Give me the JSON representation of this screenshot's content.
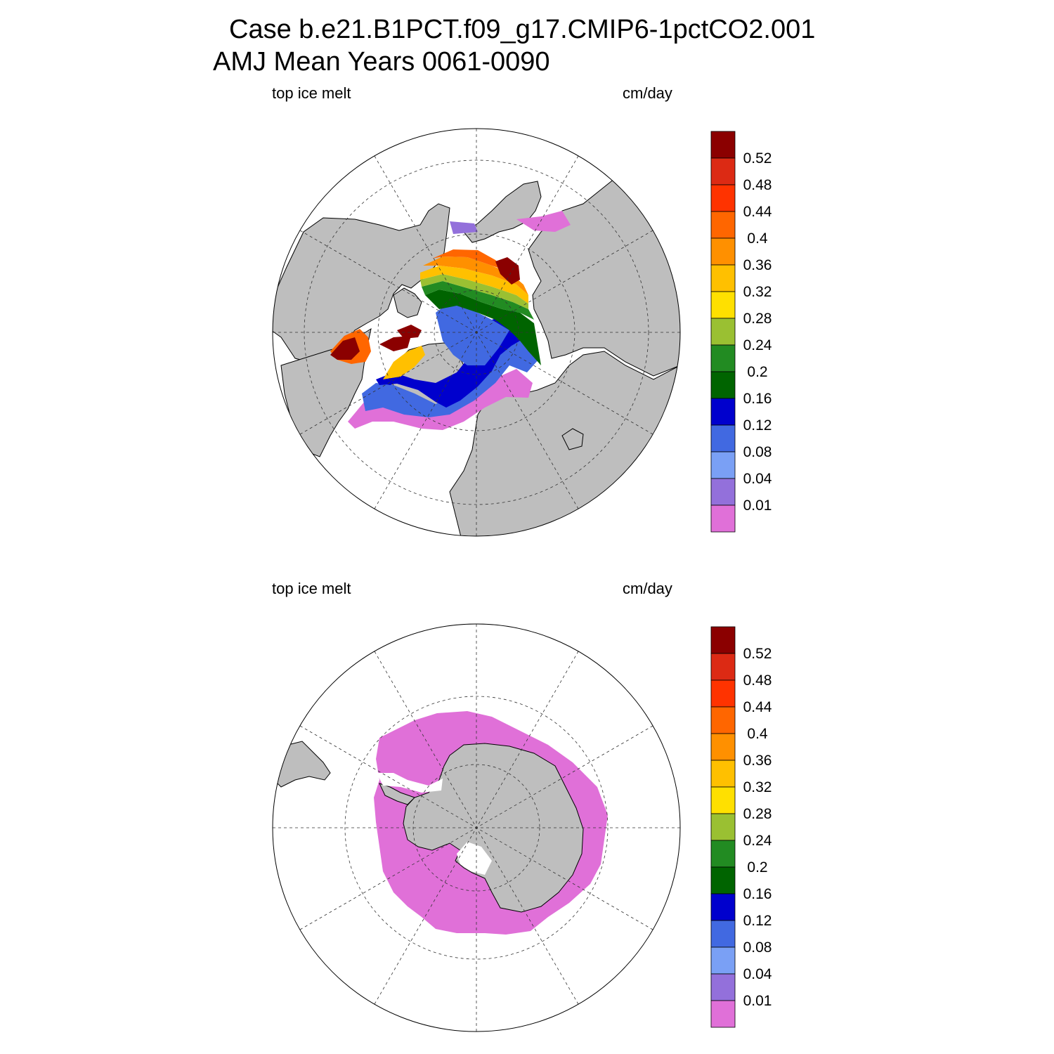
{
  "title": {
    "line1": "Case b.e21.B1PCT.f09_g17.CMIP6-1pctCO2.001",
    "line2": "AMJ Mean   Years 0061-0090"
  },
  "panels": [
    {
      "name": "north",
      "left_label": "top ice melt",
      "right_label": "cm/day"
    },
    {
      "name": "south",
      "left_label": "top ice melt",
      "right_label": "cm/day"
    }
  ],
  "colorbar": {
    "labels": [
      "0.52",
      "0.48",
      "0.44",
      "0.4",
      "0.36",
      "0.32",
      "0.28",
      "0.24",
      "0.2",
      "0.16",
      "0.12",
      "0.08",
      "0.04",
      "0.01"
    ],
    "colors": [
      "#8b0000",
      "#dc2a14",
      "#ff3300",
      "#ff6600",
      "#ff9000",
      "#ffc000",
      "#ffe000",
      "#9ac032",
      "#228b22",
      "#006400",
      "#0000cd",
      "#4169e1",
      "#7aa0f5",
      "#9370db",
      "#e070d8"
    ]
  },
  "colors": {
    "land": "#bebebe",
    "ocean": "#ffffff"
  }
}
